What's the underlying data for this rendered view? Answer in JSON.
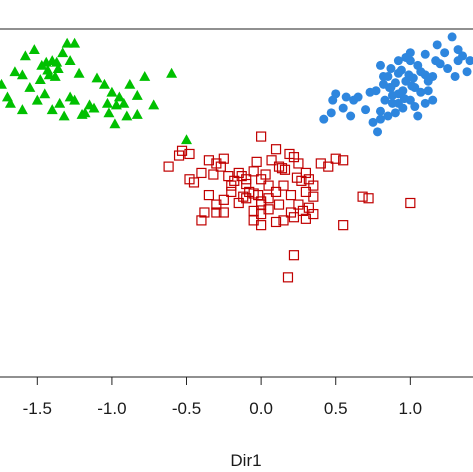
{
  "chart_data": {
    "type": "scatter",
    "xlabel": "Dir1",
    "ylabel": "",
    "xlim": [
      -1.75,
      1.42
    ],
    "ylim": [
      -0.95,
      1.25
    ],
    "x_ticks": [
      "-1.5",
      "-1.0",
      "-0.5",
      "0.0",
      "0.5",
      "1.0"
    ],
    "x_tick_values": [
      -1.5,
      -1.0,
      -0.5,
      0.0,
      0.5,
      1.0
    ],
    "grid": false,
    "legend": "none",
    "series": [
      {
        "marker": "triangle",
        "color": "#00c000",
        "points": [
          [
            -1.65,
            0.98
          ],
          [
            -1.58,
            1.08
          ],
          [
            -1.52,
            1.12
          ],
          [
            -1.47,
            1.02
          ],
          [
            -1.42,
            0.96
          ],
          [
            -1.4,
            1.05
          ],
          [
            -1.38,
            0.95
          ],
          [
            -1.36,
            1.0
          ],
          [
            -1.33,
            1.1
          ],
          [
            -1.3,
            1.16
          ],
          [
            -1.28,
            1.05
          ],
          [
            -1.25,
            1.16
          ],
          [
            -1.22,
            0.97
          ],
          [
            -1.55,
            0.88
          ],
          [
            -1.5,
            0.8
          ],
          [
            -1.45,
            0.84
          ],
          [
            -1.4,
            0.74
          ],
          [
            -1.35,
            0.78
          ],
          [
            -1.32,
            0.7
          ],
          [
            -1.28,
            0.82
          ],
          [
            -1.25,
            0.8
          ],
          [
            -1.2,
            0.71
          ],
          [
            -1.15,
            0.77
          ],
          [
            -1.1,
            0.94
          ],
          [
            -1.05,
            0.9
          ],
          [
            -1.0,
            0.85
          ],
          [
            -0.97,
            0.77
          ],
          [
            -0.95,
            0.82
          ],
          [
            -0.92,
            0.78
          ],
          [
            -0.88,
            0.9
          ],
          [
            -0.83,
            0.83
          ],
          [
            -0.78,
            0.95
          ],
          [
            -0.72,
            0.77
          ],
          [
            -0.6,
            0.97
          ],
          [
            -0.9,
            0.7
          ],
          [
            -0.98,
            0.65
          ],
          [
            -1.02,
            0.72
          ],
          [
            -1.12,
            0.75
          ],
          [
            -1.18,
            0.72
          ],
          [
            -1.48,
            0.93
          ],
          [
            -1.43,
            0.99
          ],
          [
            -1.37,
            1.04
          ],
          [
            -1.6,
            0.74
          ],
          [
            -1.7,
            0.82
          ],
          [
            -1.74,
            0.9
          ],
          [
            -0.83,
            0.71
          ],
          [
            -1.68,
            0.78
          ],
          [
            -1.03,
            0.78
          ],
          [
            -0.5,
            0.55
          ],
          [
            -1.6,
            0.96
          ],
          [
            -1.44,
            1.04
          ]
        ]
      },
      {
        "marker": "square-open",
        "color": "#c00000",
        "points": [
          [
            -0.62,
            0.38
          ],
          [
            -0.55,
            0.45
          ],
          [
            -0.53,
            0.48
          ],
          [
            -0.48,
            0.46
          ],
          [
            -0.48,
            0.3
          ],
          [
            -0.45,
            0.28
          ],
          [
            -0.4,
            0.34
          ],
          [
            -0.35,
            0.42
          ],
          [
            -0.32,
            0.33
          ],
          [
            -0.3,
            0.4
          ],
          [
            -0.27,
            0.38
          ],
          [
            -0.25,
            0.43
          ],
          [
            -0.22,
            0.32
          ],
          [
            -0.2,
            0.26
          ],
          [
            -0.18,
            0.29
          ],
          [
            -0.15,
            0.34
          ],
          [
            -0.13,
            0.32
          ],
          [
            -0.1,
            0.3
          ],
          [
            -0.08,
            0.22
          ],
          [
            -0.05,
            0.35
          ],
          [
            -0.03,
            0.41
          ],
          [
            0.0,
            0.3
          ],
          [
            0.03,
            0.33
          ],
          [
            0.05,
            0.26
          ],
          [
            0.07,
            0.42
          ],
          [
            0.1,
            0.49
          ],
          [
            0.12,
            0.38
          ],
          [
            0.14,
            0.37
          ],
          [
            0.16,
            0.36
          ],
          [
            0.19,
            0.46
          ],
          [
            0.22,
            0.44
          ],
          [
            0.25,
            0.4
          ],
          [
            0.27,
            0.29
          ],
          [
            0.3,
            0.34
          ],
          [
            0.32,
            0.3
          ],
          [
            0.35,
            0.26
          ],
          [
            0.4,
            0.4
          ],
          [
            0.45,
            0.38
          ],
          [
            0.5,
            0.43
          ],
          [
            0.55,
            0.42
          ],
          [
            -0.35,
            0.2
          ],
          [
            -0.3,
            0.14
          ],
          [
            -0.25,
            0.17
          ],
          [
            -0.2,
            0.22
          ],
          [
            -0.15,
            0.15
          ],
          [
            -0.1,
            0.18
          ],
          [
            -0.05,
            0.21
          ],
          [
            0.0,
            0.14
          ],
          [
            0.05,
            0.18
          ],
          [
            0.1,
            0.22
          ],
          [
            0.15,
            0.26
          ],
          [
            0.2,
            0.2
          ],
          [
            0.25,
            0.14
          ],
          [
            0.3,
            0.22
          ],
          [
            0.35,
            0.19
          ],
          [
            -0.38,
            0.09
          ],
          [
            -0.3,
            0.09
          ],
          [
            -0.25,
            0.09
          ],
          [
            -0.05,
            0.1
          ],
          [
            0.0,
            0.08
          ],
          [
            0.05,
            0.11
          ],
          [
            0.12,
            0.14
          ],
          [
            0.2,
            0.09
          ],
          [
            0.28,
            0.1
          ],
          [
            0.32,
            0.12
          ],
          [
            0.35,
            0.08
          ],
          [
            -0.4,
            0.04
          ],
          [
            -0.05,
            0.04
          ],
          [
            0.0,
            0.01
          ],
          [
            0.1,
            0.03
          ],
          [
            0.15,
            0.04
          ],
          [
            0.22,
            0.06
          ],
          [
            -0.12,
            0.19
          ],
          [
            0.68,
            0.19
          ],
          [
            0.72,
            0.18
          ],
          [
            1.0,
            0.15
          ],
          [
            0.55,
            0.01
          ],
          [
            0.22,
            -0.18
          ],
          [
            0.18,
            -0.32
          ],
          [
            -0.1,
            0.27
          ],
          [
            0.24,
            0.31
          ],
          [
            -0.02,
            0.2
          ],
          [
            0.3,
            0.05
          ],
          [
            0.0,
            0.16
          ],
          [
            0.0,
            0.57
          ]
        ]
      },
      {
        "marker": "circle",
        "color": "#2e86de",
        "points": [
          [
            0.42,
            0.68
          ],
          [
            0.47,
            0.72
          ],
          [
            0.48,
            0.8
          ],
          [
            0.5,
            0.84
          ],
          [
            0.55,
            0.75
          ],
          [
            0.57,
            0.82
          ],
          [
            0.6,
            0.7
          ],
          [
            0.62,
            0.8
          ],
          [
            0.65,
            0.82
          ],
          [
            0.7,
            0.74
          ],
          [
            0.73,
            0.85
          ],
          [
            0.77,
            0.86
          ],
          [
            0.8,
            0.73
          ],
          [
            0.82,
            0.9
          ],
          [
            0.83,
            0.8
          ],
          [
            0.85,
            0.95
          ],
          [
            0.87,
            0.88
          ],
          [
            0.88,
            0.78
          ],
          [
            0.9,
            0.91
          ],
          [
            0.92,
            0.84
          ],
          [
            0.94,
            0.99
          ],
          [
            0.95,
            0.86
          ],
          [
            0.97,
            0.92
          ],
          [
            1.0,
            1.05
          ],
          [
            1.02,
            0.94
          ],
          [
            1.03,
            0.88
          ],
          [
            1.05,
            1.02
          ],
          [
            1.07,
            0.98
          ],
          [
            1.1,
            0.96
          ],
          [
            1.12,
            0.92
          ],
          [
            1.15,
            0.95
          ],
          [
            1.17,
            1.05
          ],
          [
            1.2,
            1.03
          ],
          [
            1.23,
            1.1
          ],
          [
            1.25,
            1.0
          ],
          [
            1.28,
            1.2
          ],
          [
            1.3,
            0.95
          ],
          [
            1.32,
            1.12
          ],
          [
            1.35,
            1.08
          ],
          [
            1.38,
            0.98
          ],
          [
            1.4,
            1.05
          ],
          [
            0.75,
            0.66
          ],
          [
            0.78,
            0.6
          ],
          [
            0.8,
            0.68
          ],
          [
            0.85,
            0.7
          ],
          [
            0.9,
            0.72
          ],
          [
            0.95,
            0.75
          ],
          [
            1.0,
            0.8
          ],
          [
            1.05,
            0.7
          ],
          [
            1.1,
            0.78
          ],
          [
            0.82,
            0.95
          ],
          [
            0.87,
            1.0
          ],
          [
            0.92,
            1.05
          ],
          [
            0.97,
            1.07
          ],
          [
            1.0,
            1.1
          ],
          [
            1.1,
            1.09
          ],
          [
            1.18,
            1.15
          ],
          [
            1.32,
            1.05
          ],
          [
            0.8,
            1.02
          ],
          [
            0.92,
            0.97
          ],
          [
            0.88,
            0.83
          ],
          [
            0.96,
            0.81
          ],
          [
            1.01,
            0.89
          ],
          [
            1.07,
            0.85
          ],
          [
            1.03,
            0.76
          ],
          [
            1.12,
            0.86
          ],
          [
            1.15,
            0.8
          ],
          [
            0.99,
            0.96
          ],
          [
            0.86,
            0.88
          ],
          [
            0.92,
            0.78
          ]
        ]
      }
    ]
  }
}
